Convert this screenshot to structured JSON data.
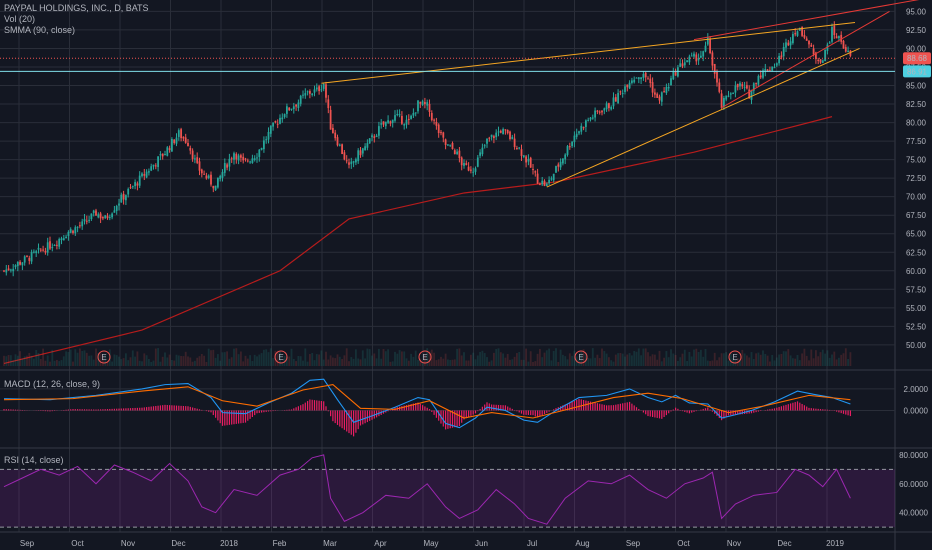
{
  "main_legend": {
    "title": "PAYPAL HOLDINGS, INC., D, BATS",
    "volume": "Vol (20)",
    "smma": "SMMA (90, close)"
  },
  "macd_legend": "MACD (12, 26, close, 9)",
  "rsi_legend": "RSI (14, close)",
  "colors": {
    "background": "#131722",
    "grid": "#2a2e39",
    "up": "#26a69a",
    "down": "#ef5350",
    "smma": "#b71c1c",
    "trendline": "#f5a623",
    "wedge": "#e53935",
    "macd": "#2196f3",
    "signal": "#ff6d00",
    "histogram": "#e91e63",
    "rsi": "#9c27b0",
    "text": "#b2b5be"
  },
  "earnings_marker": "E",
  "chart_data": [
    {
      "type": "candlestick",
      "title": "PAYPAL HOLDINGS, INC., D, BATS",
      "xlabel": "",
      "ylabel": "",
      "x_ticks": [
        "Sep",
        "Oct",
        "Nov",
        "Dec",
        "2018",
        "Feb",
        "Mar",
        "Apr",
        "May",
        "Jun",
        "Jul",
        "Aug",
        "Sep",
        "Oct",
        "Nov",
        "Dec",
        "2019"
      ],
      "y_ticks": [
        "95.00",
        "92.50",
        "90.00",
        "87.50",
        "85.00",
        "82.50",
        "80.00",
        "77.50",
        "75.00",
        "72.50",
        "70.00",
        "67.50",
        "65.00",
        "62.50",
        "60.00",
        "57.50",
        "55.00",
        "52.50",
        "50.00"
      ],
      "ylim": [
        48.5,
        96
      ],
      "price_labels": [
        "88.68",
        "86.91"
      ],
      "earnings_months": [
        "Oct",
        "Jan",
        "Apr",
        "Jul",
        "Oct"
      ],
      "close_path": [
        [
          0,
          60.0
        ],
        [
          8,
          61.3
        ],
        [
          16,
          62.7
        ],
        [
          22,
          63.8
        ],
        [
          28,
          65.3
        ],
        [
          34,
          66.2
        ],
        [
          40,
          67.8
        ],
        [
          44,
          67.0
        ],
        [
          50,
          69.4
        ],
        [
          58,
          72.0
        ],
        [
          64,
          74.0
        ],
        [
          70,
          76.0
        ],
        [
          76,
          78.5
        ],
        [
          80,
          77.3
        ],
        [
          84,
          74.0
        ],
        [
          88,
          72.6
        ],
        [
          92,
          71.3
        ],
        [
          96,
          74.0
        ],
        [
          100,
          76.0
        ],
        [
          104,
          74.5
        ],
        [
          110,
          75.8
        ],
        [
          116,
          79.0
        ],
        [
          122,
          81.5
        ],
        [
          128,
          82.8
        ],
        [
          132,
          84.0
        ],
        [
          136,
          84.3
        ],
        [
          139,
          85.3
        ],
        [
          142,
          79.5
        ],
        [
          146,
          76.8
        ],
        [
          150,
          73.8
        ],
        [
          154,
          75.7
        ],
        [
          158,
          77.0
        ],
        [
          164,
          79.5
        ],
        [
          170,
          80.8
        ],
        [
          176,
          80.0
        ],
        [
          180,
          82.5
        ],
        [
          184,
          82.2
        ],
        [
          188,
          79.3
        ],
        [
          192,
          77.0
        ],
        [
          196,
          76.2
        ],
        [
          200,
          74.0
        ],
        [
          204,
          73.8
        ],
        [
          210,
          77.5
        ],
        [
          216,
          79.0
        ],
        [
          220,
          78.0
        ],
        [
          224,
          76.5
        ],
        [
          228,
          74.5
        ],
        [
          232,
          72.3
        ],
        [
          236,
          71.5
        ],
        [
          242,
          74.8
        ],
        [
          248,
          78.3
        ],
        [
          254,
          80.4
        ],
        [
          260,
          81.8
        ],
        [
          264,
          82.5
        ],
        [
          268,
          84.0
        ],
        [
          272,
          85.8
        ],
        [
          276,
          86.4
        ],
        [
          280,
          86.0
        ],
        [
          284,
          83.0
        ],
        [
          288,
          84.5
        ],
        [
          292,
          86.9
        ],
        [
          296,
          88.3
        ],
        [
          300,
          88.7
        ],
        [
          304,
          89.2
        ],
        [
          306,
          91.0
        ],
        [
          308,
          88.0
        ],
        [
          312,
          82.2
        ],
        [
          316,
          84.3
        ],
        [
          320,
          85.0
        ],
        [
          324,
          83.8
        ],
        [
          328,
          86.4
        ],
        [
          332,
          87.2
        ],
        [
          336,
          88.0
        ],
        [
          340,
          90.5
        ],
        [
          344,
          92.5
        ],
        [
          348,
          92.0
        ],
        [
          352,
          89.0
        ],
        [
          356,
          88.5
        ],
        [
          360,
          92.3
        ],
        [
          364,
          91.0
        ],
        [
          368,
          88.68
        ]
      ],
      "smma_path": [
        [
          0,
          47.5
        ],
        [
          60,
          52.0
        ],
        [
          120,
          60.0
        ],
        [
          150,
          67.0
        ],
        [
          200,
          70.5
        ],
        [
          240,
          72.0
        ],
        [
          300,
          76.0
        ],
        [
          360,
          80.8
        ]
      ],
      "trendlines": [
        {
          "name": "upper-resistance",
          "from": [
            138,
            85.3
          ],
          "to": [
            370,
            93.5
          ]
        },
        {
          "name": "lower-support",
          "from": [
            236,
            71.3
          ],
          "to": [
            372,
            90.0
          ]
        },
        {
          "name": "wedge-upper",
          "from": [
            300,
            91.2
          ],
          "to": [
            405,
            97.0
          ]
        },
        {
          "name": "wedge-lower",
          "from": [
            312,
            82.0
          ],
          "to": [
            385,
            95.0
          ]
        }
      ]
    },
    {
      "type": "line",
      "title": "MACD (12, 26, close, 9)",
      "y_ticks": [
        "2.0000",
        "0.0000"
      ],
      "ylim": [
        -3.3,
        3.2
      ],
      "macd": [
        [
          0,
          1.1
        ],
        [
          20,
          1.0
        ],
        [
          40,
          1.4
        ],
        [
          60,
          2.0
        ],
        [
          70,
          2.4
        ],
        [
          80,
          2.5
        ],
        [
          90,
          1.2
        ],
        [
          95,
          -0.2
        ],
        [
          105,
          -0.3
        ],
        [
          115,
          0.7
        ],
        [
          125,
          1.6
        ],
        [
          133,
          2.8
        ],
        [
          139,
          2.9
        ],
        [
          145,
          1.0
        ],
        [
          152,
          -1.1
        ],
        [
          160,
          -0.5
        ],
        [
          170,
          0.3
        ],
        [
          180,
          1.2
        ],
        [
          185,
          1.0
        ],
        [
          192,
          -1.2
        ],
        [
          198,
          -1.6
        ],
        [
          205,
          -0.7
        ],
        [
          210,
          0.3
        ],
        [
          218,
          0.0
        ],
        [
          226,
          -0.9
        ],
        [
          232,
          -1.1
        ],
        [
          240,
          0.0
        ],
        [
          250,
          1.2
        ],
        [
          262,
          1.4
        ],
        [
          272,
          2.0
        ],
        [
          280,
          1.2
        ],
        [
          286,
          0.8
        ],
        [
          292,
          1.4
        ],
        [
          298,
          0.7
        ],
        [
          306,
          0.6
        ],
        [
          312,
          -0.7
        ],
        [
          318,
          -0.4
        ],
        [
          325,
          0.0
        ],
        [
          335,
          0.8
        ],
        [
          345,
          1.8
        ],
        [
          352,
          1.5
        ],
        [
          360,
          1.2
        ],
        [
          368,
          0.6
        ]
      ],
      "signal": [
        [
          0,
          1.0
        ],
        [
          30,
          1.1
        ],
        [
          60,
          1.8
        ],
        [
          80,
          2.2
        ],
        [
          95,
          0.9
        ],
        [
          110,
          0.4
        ],
        [
          130,
          1.9
        ],
        [
          143,
          2.4
        ],
        [
          155,
          0.2
        ],
        [
          170,
          0.1
        ],
        [
          185,
          0.9
        ],
        [
          200,
          -0.7
        ],
        [
          212,
          -0.2
        ],
        [
          230,
          -0.7
        ],
        [
          245,
          0.1
        ],
        [
          265,
          1.2
        ],
        [
          280,
          1.6
        ],
        [
          295,
          1.1
        ],
        [
          315,
          -0.2
        ],
        [
          330,
          0.4
        ],
        [
          350,
          1.4
        ],
        [
          368,
          1.0
        ]
      ]
    },
    {
      "type": "line",
      "title": "RSI (14, close)",
      "y_ticks": [
        "80.0000",
        "60.0000",
        "40.0000"
      ],
      "ylim": [
        28,
        82
      ],
      "bands": [
        70,
        30
      ],
      "rsi": [
        [
          0,
          58
        ],
        [
          8,
          64
        ],
        [
          16,
          70
        ],
        [
          24,
          66
        ],
        [
          32,
          72
        ],
        [
          40,
          60
        ],
        [
          48,
          73
        ],
        [
          56,
          68
        ],
        [
          64,
          62
        ],
        [
          72,
          74
        ],
        [
          80,
          62
        ],
        [
          86,
          44
        ],
        [
          92,
          40
        ],
        [
          100,
          56
        ],
        [
          110,
          52
        ],
        [
          120,
          66
        ],
        [
          128,
          70
        ],
        [
          134,
          78
        ],
        [
          139,
          80
        ],
        [
          142,
          50
        ],
        [
          148,
          34
        ],
        [
          156,
          40
        ],
        [
          166,
          52
        ],
        [
          176,
          50
        ],
        [
          184,
          60
        ],
        [
          192,
          44
        ],
        [
          198,
          36
        ],
        [
          206,
          42
        ],
        [
          214,
          56
        ],
        [
          222,
          46
        ],
        [
          228,
          36
        ],
        [
          236,
          32
        ],
        [
          244,
          50
        ],
        [
          254,
          62
        ],
        [
          264,
          60
        ],
        [
          272,
          66
        ],
        [
          280,
          56
        ],
        [
          288,
          50
        ],
        [
          296,
          60
        ],
        [
          304,
          64
        ],
        [
          308,
          68
        ],
        [
          312,
          36
        ],
        [
          318,
          46
        ],
        [
          326,
          52
        ],
        [
          336,
          54
        ],
        [
          344,
          70
        ],
        [
          350,
          66
        ],
        [
          356,
          58
        ],
        [
          362,
          70
        ],
        [
          368,
          50
        ]
      ]
    }
  ]
}
